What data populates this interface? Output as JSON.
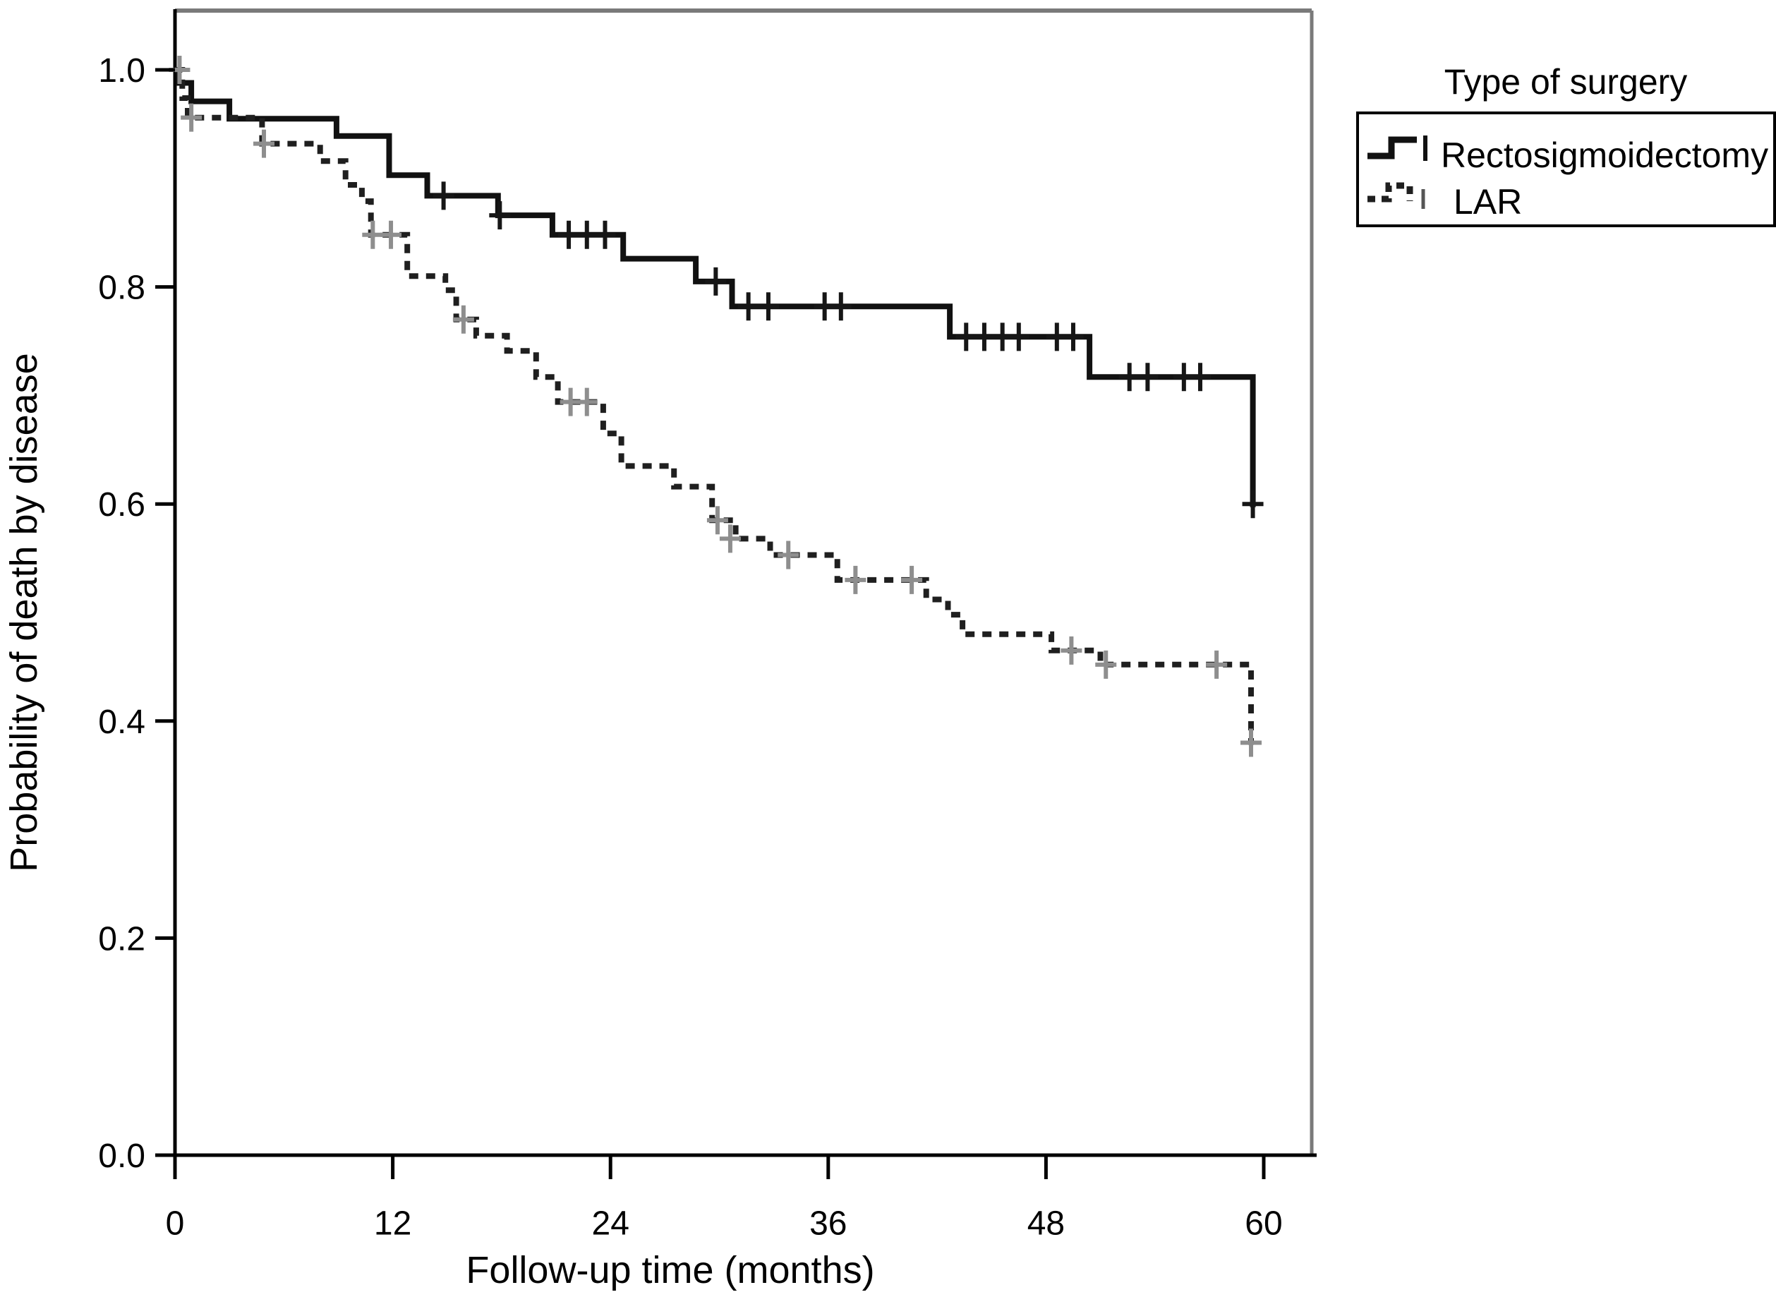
{
  "chart_data": {
    "type": "line",
    "subtype": "kaplan-meier-step-plot",
    "title": "",
    "xlabel": "Follow-up time (months)",
    "ylabel": "Probability of death by disease",
    "xlim": [
      0,
      62.6
    ],
    "ylim": [
      0,
      1.05
    ],
    "grid": false,
    "xticks": [
      {
        "value": 0,
        "label": "0"
      },
      {
        "value": 12,
        "label": "12"
      },
      {
        "value": 24,
        "label": "24"
      },
      {
        "value": 36,
        "label": "36"
      },
      {
        "value": 48,
        "label": "48"
      },
      {
        "value": 60,
        "label": "60"
      }
    ],
    "yticks": [
      {
        "value": 0.0,
        "label": "0.0"
      },
      {
        "value": 0.2,
        "label": "0.2"
      },
      {
        "value": 0.4,
        "label": "0.4"
      },
      {
        "value": 0.6,
        "label": "0.6"
      },
      {
        "value": 0.8,
        "label": "0.8"
      },
      {
        "value": 1.0,
        "label": "1.0"
      }
    ],
    "legend": {
      "title": "Type of surgery",
      "position": "top-right"
    },
    "series": [
      {
        "name": "Rectosigmoidectomy",
        "line_style": "solid",
        "color": "#111111",
        "censor_color": "#161616",
        "steps": [
          [
            0,
            1.0
          ],
          [
            0.2,
            0.988
          ],
          [
            0.9,
            0.971
          ],
          [
            3.0,
            0.955
          ],
          [
            8.9,
            0.939
          ],
          [
            11.8,
            0.903
          ],
          [
            13.9,
            0.884
          ],
          [
            17.8,
            0.866
          ],
          [
            20.8,
            0.848
          ],
          [
            24.7,
            0.826
          ],
          [
            28.7,
            0.805
          ],
          [
            30.7,
            0.782
          ],
          [
            42.7,
            0.754
          ],
          [
            50.4,
            0.717
          ],
          [
            59.4,
            0.597
          ]
        ],
        "censors": [
          [
            14.8,
            0.884
          ],
          [
            17.9,
            0.866
          ],
          [
            21.7,
            0.848
          ],
          [
            22.7,
            0.848
          ],
          [
            23.7,
            0.848
          ],
          [
            29.8,
            0.805
          ],
          [
            31.6,
            0.782
          ],
          [
            32.7,
            0.782
          ],
          [
            35.8,
            0.782
          ],
          [
            36.7,
            0.782
          ],
          [
            43.6,
            0.754
          ],
          [
            44.6,
            0.754
          ],
          [
            45.6,
            0.754
          ],
          [
            46.5,
            0.754
          ],
          [
            48.6,
            0.754
          ],
          [
            49.5,
            0.754
          ],
          [
            52.6,
            0.717
          ],
          [
            53.6,
            0.717
          ],
          [
            55.6,
            0.717
          ],
          [
            56.5,
            0.717
          ],
          [
            59.4,
            0.6
          ]
        ]
      },
      {
        "name": "LAR",
        "line_style": "dashed",
        "color": "#1f1f1f",
        "censor_color": "#8e8e8e",
        "steps": [
          [
            0,
            1.0
          ],
          [
            0.4,
            0.974
          ],
          [
            0.7,
            0.956
          ],
          [
            4.8,
            0.932
          ],
          [
            8.0,
            0.916
          ],
          [
            9.4,
            0.894
          ],
          [
            10.3,
            0.879
          ],
          [
            10.8,
            0.848
          ],
          [
            12.8,
            0.81
          ],
          [
            14.9,
            0.797
          ],
          [
            15.5,
            0.77
          ],
          [
            16.6,
            0.755
          ],
          [
            18.3,
            0.741
          ],
          [
            19.9,
            0.717
          ],
          [
            21.1,
            0.694
          ],
          [
            23.6,
            0.665
          ],
          [
            24.6,
            0.635
          ],
          [
            27.5,
            0.616
          ],
          [
            29.6,
            0.585
          ],
          [
            30.9,
            0.568
          ],
          [
            32.8,
            0.553
          ],
          [
            36.5,
            0.53
          ],
          [
            41.4,
            0.512
          ],
          [
            42.6,
            0.498
          ],
          [
            43.4,
            0.48
          ],
          [
            48.3,
            0.465
          ],
          [
            51.0,
            0.452
          ],
          [
            59.3,
            0.378
          ]
        ],
        "censors": [
          [
            0.25,
            1.0
          ],
          [
            0.9,
            0.956
          ],
          [
            4.9,
            0.932
          ],
          [
            10.9,
            0.848
          ],
          [
            11.9,
            0.848
          ],
          [
            15.9,
            0.77
          ],
          [
            21.8,
            0.694
          ],
          [
            22.7,
            0.694
          ],
          [
            29.9,
            0.585
          ],
          [
            30.6,
            0.568
          ],
          [
            33.8,
            0.553
          ],
          [
            37.5,
            0.53
          ],
          [
            40.6,
            0.53
          ],
          [
            49.4,
            0.465
          ],
          [
            51.3,
            0.452
          ],
          [
            57.4,
            0.452
          ],
          [
            59.3,
            0.38
          ]
        ]
      }
    ]
  },
  "frame": {
    "border_color": "#7a7a7a",
    "axis_color": "#000000",
    "background": "#ffffff"
  }
}
